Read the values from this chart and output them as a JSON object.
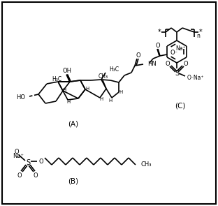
{
  "figsize": [
    3.12,
    2.95
  ],
  "dpi": 100,
  "background_color": "#ffffff",
  "lw": 1.2,
  "label_A": "(A)",
  "label_B": "(B)",
  "label_C": "(C)"
}
